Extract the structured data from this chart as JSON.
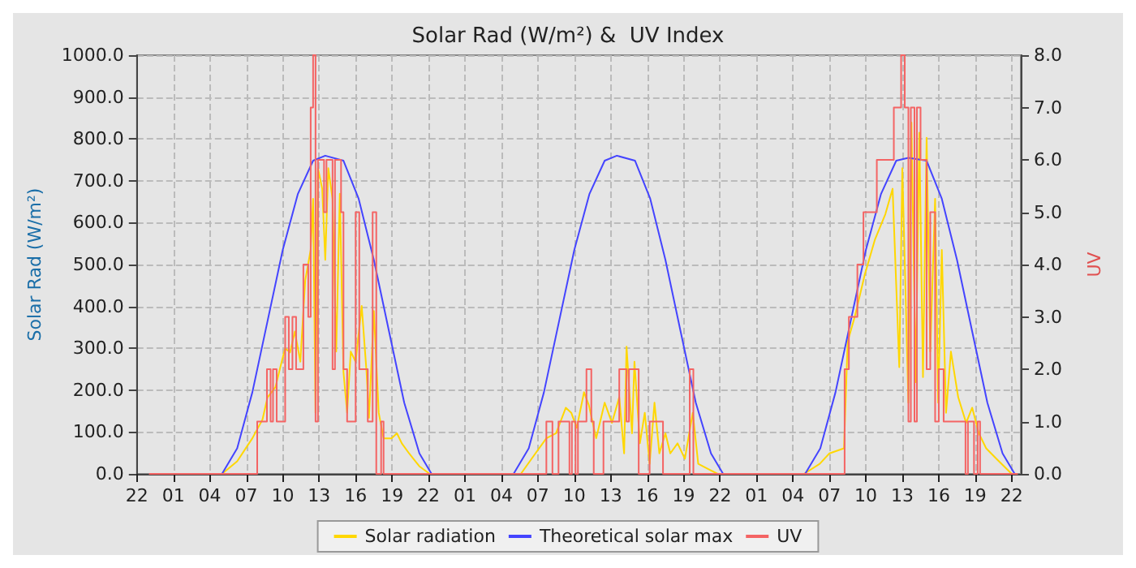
{
  "chart_data": {
    "type": "line",
    "title": "Solar Rad (W/m²) &  UV Index",
    "ylabel": "Solar Rad (W/m²)",
    "y2label": "UV",
    "xlim": [
      "--01-01T22:00",
      "--01-04T22:45"
    ],
    "ylim": [
      0,
      1000
    ],
    "y2lim": [
      0,
      8
    ],
    "xticks": [
      {
        "value": "--01-01T22:00",
        "label": "22"
      },
      {
        "value": "--01-02T01:00",
        "label": "01"
      },
      {
        "value": "--01-02T04:00",
        "label": "04"
      },
      {
        "value": "--01-02T07:00",
        "label": "07"
      },
      {
        "value": "--01-02T10:00",
        "label": "10"
      },
      {
        "value": "--01-02T13:00",
        "label": "13"
      },
      {
        "value": "--01-02T16:00",
        "label": "16"
      },
      {
        "value": "--01-02T19:00",
        "label": "19"
      },
      {
        "value": "--01-02T22:00",
        "label": "22"
      },
      {
        "value": "--01-03T01:00",
        "label": "01"
      },
      {
        "value": "--01-03T04:00",
        "label": "04"
      },
      {
        "value": "--01-03T07:00",
        "label": "07"
      },
      {
        "value": "--01-03T10:00",
        "label": "10"
      },
      {
        "value": "--01-03T13:00",
        "label": "13"
      },
      {
        "value": "--01-03T16:00",
        "label": "16"
      },
      {
        "value": "--01-03T19:00",
        "label": "19"
      },
      {
        "value": "--01-03T22:00",
        "label": "22"
      },
      {
        "value": "--01-04T01:00",
        "label": "01"
      },
      {
        "value": "--01-04T04:00",
        "label": "04"
      },
      {
        "value": "--01-04T07:00",
        "label": "07"
      },
      {
        "value": "--01-04T10:00",
        "label": "10"
      },
      {
        "value": "--01-04T13:00",
        "label": "13"
      },
      {
        "value": "--01-04T16:00",
        "label": "16"
      },
      {
        "value": "--01-04T19:00",
        "label": "19"
      },
      {
        "value": "--01-04T22:00",
        "label": "22"
      }
    ],
    "yticks": [
      {
        "value": 0,
        "label": "0.0"
      },
      {
        "value": 100,
        "label": "100.0"
      },
      {
        "value": 200,
        "label": "200.0"
      },
      {
        "value": 300,
        "label": "300.0"
      },
      {
        "value": 400,
        "label": "400.0"
      },
      {
        "value": 500,
        "label": "500.0"
      },
      {
        "value": 600,
        "label": "600.0"
      },
      {
        "value": 700,
        "label": "700.0"
      },
      {
        "value": 800,
        "label": "800.0"
      },
      {
        "value": 900,
        "label": "900.0"
      },
      {
        "value": 1000,
        "label": "1000.0"
      }
    ],
    "y2ticks": [
      {
        "value": 0,
        "label": "0.0"
      },
      {
        "value": 1,
        "label": "1.0"
      },
      {
        "value": 2,
        "label": "2.0"
      },
      {
        "value": 3,
        "label": "3.0"
      },
      {
        "value": 4,
        "label": "4.0"
      },
      {
        "value": 5,
        "label": "5.0"
      },
      {
        "value": 6,
        "label": "6.0"
      },
      {
        "value": 7,
        "label": "7.0"
      },
      {
        "value": 8,
        "label": "8.0"
      }
    ],
    "grid": true,
    "legend": "bottom",
    "marker": "none",
    "series": [
      {
        "name": "Solar radiation",
        "color": "#ffd700",
        "x": [
          "--01-01T23:00",
          "--01-02T05:00",
          "--01-02T06:15",
          "--01-02T07:30",
          "--01-02T08:20",
          "--01-02T08:45",
          "--01-02T09:24",
          "--01-02T09:48",
          "--01-02T10:12",
          "--01-02T10:36",
          "--01-02T11:00",
          "--01-02T11:27",
          "--01-02T11:51",
          "--01-02T12:18",
          "--01-02T12:30",
          "--01-02T12:42",
          "--01-02T12:54",
          "--01-02T13:15",
          "--01-02T13:30",
          "--01-02T13:45",
          "--01-02T14:06",
          "--01-02T14:24",
          "--01-02T14:42",
          "--01-02T15:00",
          "--01-02T15:18",
          "--01-02T15:36",
          "--01-02T16:00",
          "--01-02T16:30",
          "--01-02T16:54",
          "--01-02T17:06",
          "--01-02T17:30",
          "--01-02T17:54",
          "--01-02T18:18",
          "--01-02T18:57",
          "--01-02T19:24",
          "--01-02T19:48",
          "--01-02T20:24",
          "--01-02T21:15",
          "--01-02T22:06",
          "--01-03T05:36",
          "--01-03T06:48",
          "--01-03T07:42",
          "--01-03T08:30",
          "--01-03T09:18",
          "--01-03T09:45",
          "--01-03T10:12",
          "--01-03T10:48",
          "--01-03T11:12",
          "--01-03T11:48",
          "--01-03T12:30",
          "--01-03T13:06",
          "--01-03T13:42",
          "--01-03T14:06",
          "--01-03T14:18",
          "--01-03T14:45",
          "--01-03T14:57",
          "--01-03T15:24",
          "--01-03T15:48",
          "--01-03T16:12",
          "--01-03T16:36",
          "--01-03T17:00",
          "--01-03T17:30",
          "--01-03T17:54",
          "--01-03T18:30",
          "--01-03T19:06",
          "--01-03T19:45",
          "--01-03T20:12",
          "--01-03T21:00",
          "--01-03T21:48",
          "--01-04T04:54",
          "--01-04T06:12",
          "--01-04T07:00",
          "--01-04T08:12",
          "--01-04T08:30",
          "--01-04T09:06",
          "--01-04T09:54",
          "--01-04T10:45",
          "--01-04T11:36",
          "--01-04T12:12",
          "--01-04T12:45",
          "--01-04T13:00",
          "--01-04T13:30",
          "--01-04T13:45",
          "--01-04T14:06",
          "--01-04T14:24",
          "--01-04T14:42",
          "--01-04T15:00",
          "--01-04T15:18",
          "--01-04T15:42",
          "--01-04T15:57",
          "--01-04T16:15",
          "--01-04T16:36",
          "--01-04T17:00",
          "--01-04T17:36",
          "--01-04T18:15",
          "--01-04T18:45",
          "--01-04T19:18",
          "--01-04T19:54",
          "--01-04T20:45",
          "--01-04T22:00",
          "--01-04T22:30"
        ],
        "values": [
          0,
          0,
          30,
          85,
          130,
          183,
          207,
          255,
          300,
          290,
          340,
          268,
          462,
          535,
          657,
          146,
          730,
          681,
          511,
          730,
          657,
          292,
          669,
          243,
          146,
          292,
          268,
          401,
          243,
          134,
          389,
          146,
          85,
          85,
          97,
          73,
          49,
          18,
          0,
          0,
          49,
          85,
          97,
          158,
          146,
          110,
          195,
          164,
          85,
          170,
          122,
          183,
          49,
          304,
          97,
          268,
          73,
          146,
          24,
          170,
          49,
          97,
          49,
          73,
          36,
          146,
          24,
          12,
          0,
          0,
          24,
          49,
          61,
          316,
          377,
          475,
          560,
          620,
          681,
          255,
          730,
          170,
          839,
          219,
          815,
          231,
          803,
          292,
          657,
          170,
          535,
          146,
          292,
          183,
          122,
          158,
          97,
          61,
          36,
          0,
          0
        ]
      },
      {
        "name": "Theoretical solar max",
        "color": "#4444ff",
        "x": [
          "--01-01T23:00",
          "--01-02T05:00",
          "--01-02T06:15",
          "--01-02T07:30",
          "--01-02T08:45",
          "--01-02T10:00",
          "--01-02T11:15",
          "--01-02T12:30",
          "--01-02T13:30",
          "--01-02T15:00",
          "--01-02T16:15",
          "--01-02T17:30",
          "--01-02T18:45",
          "--01-02T20:00",
          "--01-02T21:15",
          "--01-02T22:15",
          "--01-03T05:00",
          "--01-03T06:15",
          "--01-03T07:30",
          "--01-03T08:45",
          "--01-03T10:00",
          "--01-03T11:15",
          "--01-03T12:30",
          "--01-03T13:30",
          "--01-03T15:00",
          "--01-03T16:15",
          "--01-03T17:30",
          "--01-03T18:45",
          "--01-03T20:00",
          "--01-03T21:15",
          "--01-03T22:15",
          "--01-04T05:00",
          "--01-04T06:15",
          "--01-04T07:30",
          "--01-04T08:45",
          "--01-04T10:00",
          "--01-04T11:15",
          "--01-04T12:30",
          "--01-04T13:30",
          "--01-04T15:00",
          "--01-04T16:15",
          "--01-04T17:30",
          "--01-04T18:45",
          "--01-04T20:00",
          "--01-04T21:15",
          "--01-04T22:15",
          "--01-04T22:30"
        ],
        "values": [
          0,
          0,
          61,
          195,
          365,
          535,
          669,
          748,
          760,
          748,
          657,
          511,
          340,
          170,
          49,
          0,
          0,
          61,
          195,
          365,
          535,
          669,
          748,
          760,
          748,
          657,
          511,
          340,
          170,
          49,
          0,
          0,
          61,
          195,
          365,
          535,
          669,
          748,
          755,
          748,
          657,
          511,
          340,
          170,
          49,
          0,
          0
        ]
      },
      {
        "name": "UV",
        "type": "step",
        "axis": "y2",
        "color": "#f46464",
        "x": [
          "--01-01T23:00",
          "--01-02T07:54",
          "--01-02T08:42",
          "--01-02T09:00",
          "--01-02T09:12",
          "--01-02T09:30",
          "--01-02T10:12",
          "--01-02T10:30",
          "--01-02T10:48",
          "--01-02T11:06",
          "--01-02T11:42",
          "--01-02T12:06",
          "--01-02T12:18",
          "--01-02T12:30",
          "--01-02T12:42",
          "--01-02T12:54",
          "--01-02T13:24",
          "--01-02T13:36",
          "--01-02T14:06",
          "--01-02T14:18",
          "--01-02T14:48",
          "--01-02T15:00",
          "--01-02T15:18",
          "--01-02T16:00",
          "--01-02T16:18",
          "--01-02T17:00",
          "--01-02T17:24",
          "--01-02T17:42",
          "--01-02T18:06",
          "--01-02T18:18",
          "--01-03T07:42",
          "--01-03T08:12",
          "--01-03T08:42",
          "--01-03T09:36",
          "--01-03T09:48",
          "--01-03T10:06",
          "--01-03T10:18",
          "--01-03T11:00",
          "--01-03T11:24",
          "--01-03T11:36",
          "--01-03T12:24",
          "--01-03T13:42",
          "--01-03T14:18",
          "--01-03T14:30",
          "--01-03T15:18",
          "--01-03T16:12",
          "--01-03T17:18",
          "--01-03T19:30",
          "--01-03T19:48",
          "--01-04T08:15",
          "--01-04T08:36",
          "--01-04T09:18",
          "--01-04T09:48",
          "--01-04T10:54",
          "--01-04T12:18",
          "--01-04T12:54",
          "--01-04T13:12",
          "--01-04T13:30",
          "--01-04T13:42",
          "--01-04T14:00",
          "--01-04T14:12",
          "--01-04T14:30",
          "--01-04T15:00",
          "--01-04T15:18",
          "--01-04T15:42",
          "--01-04T16:00",
          "--01-04T16:24",
          "--01-04T18:12",
          "--01-04T18:24",
          "--01-04T18:54",
          "--01-04T19:12",
          "--01-04T19:24",
          "--01-04T22:30"
        ],
        "values": [
          0,
          1,
          2,
          1,
          2,
          1,
          3,
          2,
          3,
          2,
          4,
          3,
          7,
          8,
          1,
          6,
          5,
          6,
          2,
          6,
          5,
          2,
          1,
          5,
          2,
          1,
          5,
          0,
          1,
          0,
          1,
          0,
          1,
          0,
          1,
          0,
          1,
          2,
          1,
          0,
          1,
          2,
          1,
          2,
          0,
          1,
          0,
          2,
          0,
          2,
          3,
          4,
          5,
          6,
          7,
          8,
          7,
          1,
          7,
          1,
          7,
          6,
          2,
          5,
          1,
          2,
          1,
          0,
          1,
          0,
          1,
          0,
          0
        ]
      }
    ]
  }
}
